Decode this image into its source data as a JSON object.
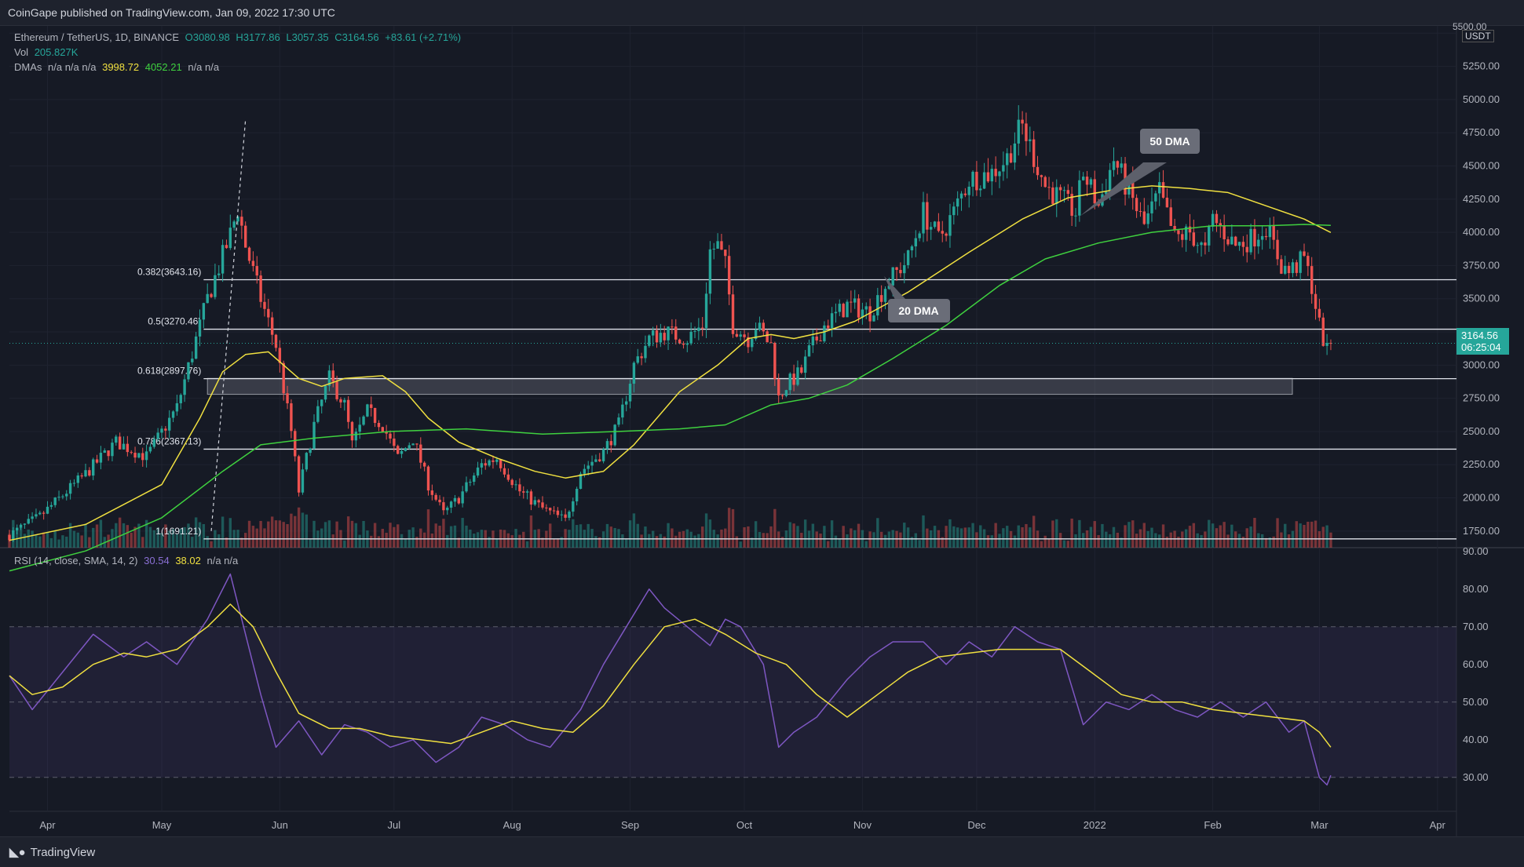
{
  "header": {
    "published": "CoinGape published on TradingView.com, Jan 09, 2022 17:30 UTC"
  },
  "legend": {
    "symbol": "Ethereum / TetherUS, 1D, BINANCE",
    "o": "O3080.98",
    "h": "H3177.86",
    "l": "L3057.35",
    "c": "C3164.56",
    "chg": "+83.61 (+2.71%)",
    "vol_label": "Vol",
    "vol_value": "205.827K",
    "dma_label": "DMAs",
    "dma_na": "n/a n/a n/a",
    "dma_20": "3998.72",
    "dma_50": "4052.21",
    "dma_na2": "n/a n/a",
    "rsi_label": "RSI (14, close, SMA, 14, 2)",
    "rsi_value": "30.54",
    "rsi_sma": "38.02",
    "rsi_na": "n/a n/a"
  },
  "price_axis": {
    "currency": "USDT",
    "price_box": "3164.56",
    "countdown": "06:25:04",
    "top_label": "5500.00"
  },
  "annotations": {
    "dma50": "50 DMA",
    "dma20": "20 DMA"
  },
  "footer": {
    "brand": "TradingView"
  },
  "colors": {
    "bull": "#26a69a",
    "bear": "#ef5350",
    "dma20": "#f0e040",
    "dma50": "#3fd13f",
    "rsi": "#7e57c2",
    "rsi_sma": "#f0e040",
    "bg": "#161a25"
  },
  "chart_data": [
    {
      "type": "candlestick",
      "title": "Ethereum / TetherUS, 1D, BINANCE",
      "x_ticks": [
        "Apr",
        "May",
        "Jun",
        "Jul",
        "Aug",
        "Sep",
        "Oct",
        "Nov",
        "Dec",
        "2022",
        "Feb",
        "Mar",
        "Apr"
      ],
      "y_ticks": [
        1750,
        2000,
        2250,
        2500,
        2750,
        3000,
        3250,
        3500,
        3750,
        4000,
        4250,
        4500,
        4750,
        5000,
        5250,
        5500
      ],
      "ylim": [
        1625,
        5555
      ],
      "close_path": [
        [
          0,
          1720
        ],
        [
          8,
          1860
        ],
        [
          20,
          2180
        ],
        [
          28,
          2420
        ],
        [
          36,
          2310
        ],
        [
          44,
          2680
        ],
        [
          52,
          3500
        ],
        [
          58,
          3980
        ],
        [
          60,
          4180
        ],
        [
          62,
          3900
        ],
        [
          66,
          3500
        ],
        [
          70,
          3150
        ],
        [
          74,
          2500
        ],
        [
          76,
          2050
        ],
        [
          80,
          2550
        ],
        [
          84,
          2900
        ],
        [
          88,
          2700
        ],
        [
          90,
          2400
        ],
        [
          94,
          2650
        ],
        [
          98,
          2550
        ],
        [
          102,
          2300
        ],
        [
          106,
          2450
        ],
        [
          110,
          2100
        ],
        [
          114,
          1880
        ],
        [
          118,
          2000
        ],
        [
          124,
          2250
        ],
        [
          128,
          2300
        ],
        [
          134,
          2050
        ],
        [
          140,
          1920
        ],
        [
          146,
          1830
        ],
        [
          150,
          2200
        ],
        [
          156,
          2350
        ],
        [
          160,
          2550
        ],
        [
          164,
          3000
        ],
        [
          168,
          3200
        ],
        [
          172,
          3250
        ],
        [
          178,
          3200
        ],
        [
          182,
          3300
        ],
        [
          184,
          3860
        ],
        [
          186,
          3900
        ],
        [
          188,
          3750
        ],
        [
          190,
          3300
        ],
        [
          194,
          3200
        ],
        [
          196,
          3300
        ],
        [
          200,
          3150
        ],
        [
          202,
          2750
        ],
        [
          204,
          2850
        ],
        [
          208,
          2950
        ],
        [
          210,
          3100
        ],
        [
          214,
          3300
        ],
        [
          220,
          3450
        ],
        [
          226,
          3400
        ],
        [
          230,
          3600
        ],
        [
          236,
          3800
        ],
        [
          240,
          4150
        ],
        [
          244,
          3950
        ],
        [
          248,
          4150
        ],
        [
          252,
          4400
        ],
        [
          258,
          4450
        ],
        [
          262,
          4560
        ],
        [
          264,
          4700
        ],
        [
          266,
          4800
        ],
        [
          268,
          4650
        ],
        [
          272,
          4350
        ],
        [
          276,
          4250
        ],
        [
          280,
          4150
        ],
        [
          282,
          4450
        ],
        [
          286,
          4200
        ],
        [
          290,
          4550
        ],
        [
          294,
          4300
        ],
        [
          298,
          4050
        ],
        [
          302,
          4300
        ],
        [
          306,
          3950
        ],
        [
          310,
          4000
        ],
        [
          314,
          3850
        ],
        [
          316,
          4100
        ],
        [
          322,
          3900
        ],
        [
          326,
          3950
        ],
        [
          330,
          4050
        ],
        [
          334,
          3750
        ],
        [
          336,
          3700
        ],
        [
          340,
          3800
        ],
        [
          342,
          3600
        ],
        [
          344,
          3300
        ],
        [
          346,
          3100
        ],
        [
          347,
          3164.56
        ]
      ],
      "dma20_path": [
        [
          0,
          1680
        ],
        [
          20,
          1800
        ],
        [
          40,
          2100
        ],
        [
          50,
          2600
        ],
        [
          56,
          2950
        ],
        [
          62,
          3080
        ],
        [
          68,
          3100
        ],
        [
          76,
          2900
        ],
        [
          82,
          2840
        ],
        [
          88,
          2900
        ],
        [
          98,
          2920
        ],
        [
          104,
          2800
        ],
        [
          110,
          2600
        ],
        [
          118,
          2420
        ],
        [
          128,
          2300
        ],
        [
          138,
          2200
        ],
        [
          146,
          2150
        ],
        [
          156,
          2200
        ],
        [
          164,
          2400
        ],
        [
          176,
          2800
        ],
        [
          186,
          3000
        ],
        [
          194,
          3200
        ],
        [
          200,
          3230
        ],
        [
          206,
          3200
        ],
        [
          214,
          3250
        ],
        [
          222,
          3330
        ],
        [
          236,
          3550
        ],
        [
          252,
          3850
        ],
        [
          266,
          4100
        ],
        [
          278,
          4260
        ],
        [
          290,
          4320
        ],
        [
          300,
          4350
        ],
        [
          310,
          4330
        ],
        [
          320,
          4300
        ],
        [
          330,
          4200
        ],
        [
          340,
          4100
        ],
        [
          347,
          3998.72
        ]
      ],
      "dma50_path": [
        [
          0,
          1450
        ],
        [
          20,
          1600
        ],
        [
          40,
          1850
        ],
        [
          56,
          2200
        ],
        [
          66,
          2400
        ],
        [
          80,
          2450
        ],
        [
          100,
          2500
        ],
        [
          120,
          2520
        ],
        [
          140,
          2480
        ],
        [
          160,
          2500
        ],
        [
          176,
          2520
        ],
        [
          188,
          2550
        ],
        [
          200,
          2700
        ],
        [
          210,
          2750
        ],
        [
          220,
          2850
        ],
        [
          232,
          3050
        ],
        [
          246,
          3300
        ],
        [
          260,
          3600
        ],
        [
          272,
          3800
        ],
        [
          286,
          3920
        ],
        [
          300,
          4000
        ],
        [
          316,
          4050
        ],
        [
          330,
          4050
        ],
        [
          340,
          4060
        ],
        [
          347,
          4052.21
        ]
      ],
      "fib_levels": [
        {
          "ratio": "0.382",
          "price": "3643.16",
          "label": "0.382(3643.16)"
        },
        {
          "ratio": "0.5",
          "price": "3270.46",
          "label": "0.5(3270.46)"
        },
        {
          "ratio": "0.618",
          "price": "2897.76",
          "label": "0.618(2897.76)"
        },
        {
          "ratio": "0.786",
          "price": "2367.13",
          "label": "0.786(2367.13)"
        },
        {
          "ratio": "1",
          "price": "1691.21",
          "label": "1(1691.21)"
        }
      ],
      "support_zone": [
        2780,
        2900
      ],
      "last_price": 3164.56
    },
    {
      "type": "line",
      "title": "RSI (14, close, SMA, 14, 2)",
      "y_ticks": [
        30,
        40,
        50,
        60,
        70,
        80,
        90
      ],
      "ylim": [
        21,
        91
      ],
      "band": [
        30,
        70
      ],
      "rsi_path": [
        [
          0,
          57
        ],
        [
          6,
          48
        ],
        [
          14,
          58
        ],
        [
          22,
          68
        ],
        [
          30,
          62
        ],
        [
          36,
          66
        ],
        [
          44,
          60
        ],
        [
          52,
          72
        ],
        [
          58,
          84
        ],
        [
          62,
          68
        ],
        [
          66,
          52
        ],
        [
          70,
          38
        ],
        [
          76,
          45
        ],
        [
          82,
          36
        ],
        [
          88,
          44
        ],
        [
          94,
          42
        ],
        [
          100,
          38
        ],
        [
          106,
          40
        ],
        [
          112,
          34
        ],
        [
          118,
          38
        ],
        [
          124,
          46
        ],
        [
          130,
          44
        ],
        [
          136,
          40
        ],
        [
          142,
          38
        ],
        [
          150,
          48
        ],
        [
          156,
          60
        ],
        [
          162,
          70
        ],
        [
          168,
          80
        ],
        [
          172,
          75
        ],
        [
          178,
          70
        ],
        [
          184,
          65
        ],
        [
          188,
          72
        ],
        [
          192,
          70
        ],
        [
          198,
          60
        ],
        [
          202,
          38
        ],
        [
          206,
          42
        ],
        [
          212,
          46
        ],
        [
          220,
          56
        ],
        [
          226,
          62
        ],
        [
          232,
          66
        ],
        [
          240,
          66
        ],
        [
          246,
          60
        ],
        [
          252,
          66
        ],
        [
          258,
          62
        ],
        [
          264,
          70
        ],
        [
          270,
          66
        ],
        [
          276,
          64
        ],
        [
          282,
          44
        ],
        [
          288,
          50
        ],
        [
          294,
          48
        ],
        [
          300,
          52
        ],
        [
          306,
          48
        ],
        [
          312,
          46
        ],
        [
          318,
          50
        ],
        [
          324,
          46
        ],
        [
          330,
          50
        ],
        [
          336,
          42
        ],
        [
          340,
          45
        ],
        [
          344,
          30
        ],
        [
          346,
          28
        ],
        [
          347,
          30.54
        ]
      ],
      "rsi_sma_path": [
        [
          0,
          57
        ],
        [
          6,
          52
        ],
        [
          14,
          54
        ],
        [
          22,
          60
        ],
        [
          30,
          63
        ],
        [
          36,
          62
        ],
        [
          44,
          64
        ],
        [
          52,
          70
        ],
        [
          58,
          76
        ],
        [
          64,
          70
        ],
        [
          70,
          58
        ],
        [
          76,
          47
        ],
        [
          84,
          43
        ],
        [
          92,
          43
        ],
        [
          100,
          41
        ],
        [
          108,
          40
        ],
        [
          116,
          39
        ],
        [
          124,
          42
        ],
        [
          132,
          45
        ],
        [
          140,
          43
        ],
        [
          148,
          42
        ],
        [
          156,
          49
        ],
        [
          164,
          60
        ],
        [
          172,
          70
        ],
        [
          180,
          72
        ],
        [
          188,
          68
        ],
        [
          196,
          63
        ],
        [
          204,
          60
        ],
        [
          212,
          52
        ],
        [
          220,
          46
        ],
        [
          228,
          52
        ],
        [
          236,
          58
        ],
        [
          244,
          62
        ],
        [
          252,
          63
        ],
        [
          260,
          64
        ],
        [
          268,
          64
        ],
        [
          276,
          64
        ],
        [
          284,
          58
        ],
        [
          292,
          52
        ],
        [
          300,
          50
        ],
        [
          308,
          50
        ],
        [
          316,
          48
        ],
        [
          324,
          47
        ],
        [
          332,
          46
        ],
        [
          340,
          45
        ],
        [
          344,
          42
        ],
        [
          347,
          38.02
        ]
      ]
    }
  ]
}
